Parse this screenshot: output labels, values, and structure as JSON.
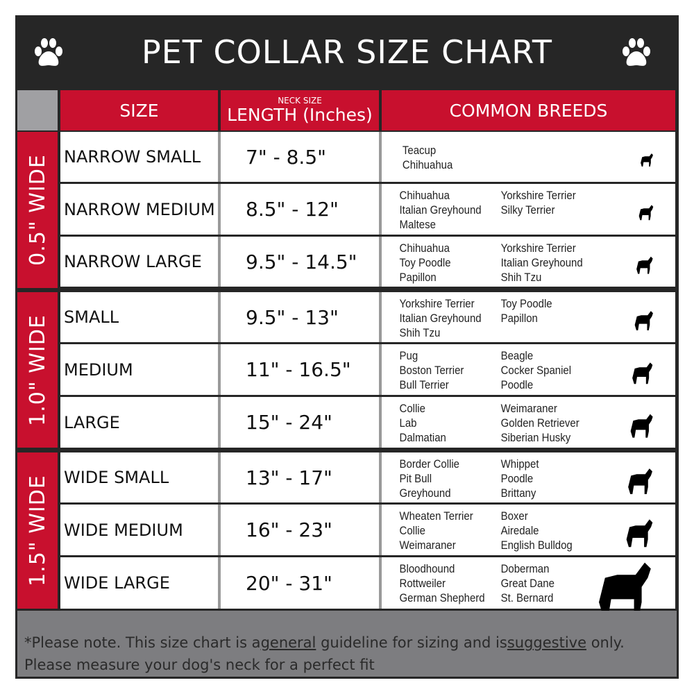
{
  "title": "PET COLLAR SIZE CHART",
  "headers": {
    "size": "SIZE",
    "length_small": "NECK SIZE",
    "length": "LENGTH (Inches)",
    "breeds": "COMMON BREEDS"
  },
  "groups": [
    "0.5\" WIDE",
    "1.0\" WIDE",
    "1.5\" WIDE"
  ],
  "rows": [
    {
      "size": "NARROW SMALL",
      "length": "7\" - 8.5\"",
      "breeds_a": [
        "Teacup",
        "Chihuahua"
      ],
      "breeds_b": []
    },
    {
      "size": "NARROW MEDIUM",
      "length": "8.5\" - 12\"",
      "breeds_a": [
        "Chihuahua",
        "Italian Greyhound",
        "Maltese"
      ],
      "breeds_b": [
        "Yorkshire Terrier",
        "Silky Terrier"
      ]
    },
    {
      "size": "NARROW LARGE",
      "length": "9.5\" - 14.5\"",
      "breeds_a": [
        "Chihuahua",
        "Toy Poodle",
        "Papillon"
      ],
      "breeds_b": [
        "Yorkshire Terrier",
        "Italian Greyhound",
        "Shih Tzu"
      ]
    },
    {
      "size": "SMALL",
      "length": "9.5\" - 13\"",
      "breeds_a": [
        "Yorkshire Terrier",
        "Italian Greyhound",
        "Shih Tzu"
      ],
      "breeds_b": [
        "Toy Poodle",
        "Papillon"
      ]
    },
    {
      "size": "MEDIUM",
      "length": "11\" - 16.5\"",
      "breeds_a": [
        "Pug",
        "Boston Terrier",
        "Bull Terrier"
      ],
      "breeds_b": [
        "Beagle",
        "Cocker Spaniel",
        "Poodle"
      ]
    },
    {
      "size": "LARGE",
      "length": "15\" - 24\"",
      "breeds_a": [
        "Collie",
        "Lab",
        "Dalmatian"
      ],
      "breeds_b": [
        "Weimaraner",
        "Golden Retriever",
        "Siberian Husky"
      ]
    },
    {
      "size": "WIDE SMALL",
      "length": "13\" - 17\"",
      "breeds_a": [
        "Border Collie",
        "Pit Bull",
        "Greyhound"
      ],
      "breeds_b": [
        "Whippet",
        "Poodle",
        "Brittany"
      ]
    },
    {
      "size": "WIDE MEDIUM",
      "length": "16\" - 23\"",
      "breeds_a": [
        "Wheaten Terrier",
        "Collie",
        "Weimaraner"
      ],
      "breeds_b": [
        "Boxer",
        "Airedale",
        "English Bulldog"
      ]
    },
    {
      "size": "WIDE LARGE",
      "length": "20\" - 31\"",
      "breeds_a": [
        "Bloodhound",
        "Rottweiler",
        "German Shepherd"
      ],
      "breeds_b": [
        "Doberman",
        "Great Dane",
        "St. Bernard"
      ]
    }
  ],
  "footer": {
    "p1": "*Please note. This size chart is a",
    "u1": "general",
    "p2": " guideline for sizing and is",
    "u2": "suggestive",
    "p3": " only.",
    "line2": "Please measure your dog's neck for a perfect fit"
  },
  "colors": {
    "red": "#c8102e",
    "dark": "#262626",
    "footer_gray": "#7d7d80"
  },
  "icons": [
    "paw-print-icon",
    "dog-silhouette-icon"
  ]
}
